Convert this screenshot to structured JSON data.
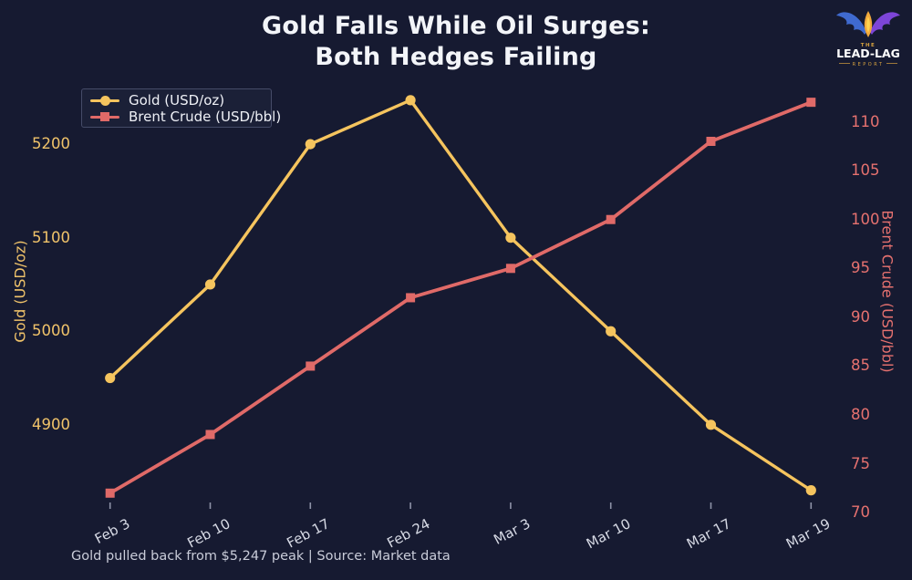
{
  "header": {
    "title_line1": "Gold Falls While Oil Surges:",
    "title_line2": "Both Hedges Failing"
  },
  "logo": {
    "the": "THE",
    "main": "LEAD-LAG",
    "report": "REPORT"
  },
  "footer": {
    "note": "Gold pulled back from $5,247 peak | Source: Market data"
  },
  "colors": {
    "background": "#161a31",
    "title": "#f3f5f9",
    "gold": "#f5c45e",
    "brent": "#e06a68",
    "xtick": "#d7dae5",
    "tick_mark": "#8e93a8",
    "footer_text": "#c9ccd9"
  },
  "chart_data": {
    "type": "line",
    "categories": [
      "Feb 3",
      "Feb 10",
      "Feb 17",
      "Feb 24",
      "Mar 3",
      "Mar 10",
      "Mar 17",
      "Mar 19"
    ],
    "series": [
      {
        "name": "Gold (USD/oz)",
        "axis": "left",
        "color": "#f5c45e",
        "marker": "circle",
        "values": [
          4950,
          5050,
          5200,
          5247,
          5100,
          5000,
          4900,
          4830
        ]
      },
      {
        "name": "Brent Crude (USD/bbl)",
        "axis": "right",
        "color": "#e06a68",
        "marker": "square",
        "values": [
          72,
          78,
          85,
          92,
          95,
          100,
          108,
          112
        ]
      }
    ],
    "left_axis": {
      "label": "Gold (USD/oz)",
      "ticks": [
        4900,
        5000,
        5100,
        5200
      ],
      "range": [
        4816,
        5261.5
      ],
      "color": "#f0c36a"
    },
    "right_axis": {
      "label": "Brent Crude (USD/bbl)",
      "ticks": [
        70,
        75,
        80,
        85,
        90,
        95,
        100,
        105,
        110
      ],
      "range": [
        70.95,
        113.6
      ],
      "color": "#e5716f"
    },
    "grid": false,
    "legend_position": "upper left",
    "annotation": "Gold pulled back from $5,247 peak | Source: Market data"
  }
}
